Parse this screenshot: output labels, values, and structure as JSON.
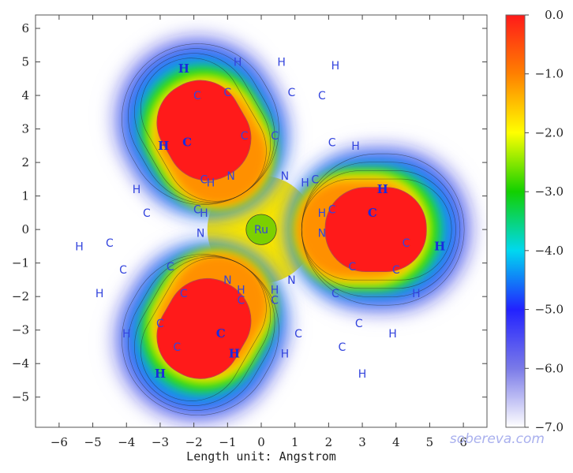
{
  "chart_data": {
    "type": "heatmap",
    "title": "",
    "xlabel": "Length unit: Angstrom",
    "ylabel": "",
    "xlim": [
      -6.7,
      6.7
    ],
    "ylim": [
      -5.9,
      6.4
    ],
    "x_ticks": [
      -6,
      -5,
      -4,
      -3,
      -2,
      -1,
      0,
      1,
      2,
      3,
      4,
      5,
      6
    ],
    "y_ticks": [
      -5,
      -4,
      -3,
      -2,
      -1,
      0,
      1,
      2,
      3,
      4,
      5,
      6
    ],
    "x_tick_labels": [
      "−6",
      "−5",
      "−4",
      "−3",
      "−2",
      "−1",
      "0",
      "1",
      "2",
      "3",
      "4",
      "5",
      "6"
    ],
    "y_tick_labels": [
      "−5",
      "−4",
      "−3",
      "−2",
      "−1",
      "0",
      "1",
      "2",
      "3",
      "4",
      "5",
      "6"
    ],
    "colorbar": {
      "range": [
        -7.0,
        0.0
      ],
      "ticks": [
        0.0,
        -1.0,
        -2.0,
        -3.0,
        -4.0,
        -5.0,
        -6.0,
        -7.0
      ],
      "tick_labels": [
        "0.0",
        "−1.0",
        "−2.0",
        "−3.0",
        "−4.0",
        "−5.0",
        "−6.0",
        "−7.0"
      ],
      "colors": [
        "#ffffff",
        "#7a7ae8",
        "#2222ff",
        "#00d8f0",
        "#12d000",
        "#ffff00",
        "#ff8000",
        "#ff1a1a"
      ]
    },
    "center_atom": {
      "label": "Ru",
      "x": 0.0,
      "y": 0.0
    },
    "ligand_axes_deg": [
      120,
      0,
      240
    ],
    "atoms": [
      {
        "label": "Ru",
        "x": 0.0,
        "y": 0.0,
        "bold": false
      },
      {
        "label": "H",
        "x": -2.3,
        "y": 4.8,
        "bold": true
      },
      {
        "label": "H",
        "x": -0.7,
        "y": 5.0,
        "bold": false
      },
      {
        "label": "H",
        "x": 0.6,
        "y": 5.0,
        "bold": false
      },
      {
        "label": "H",
        "x": 2.2,
        "y": 4.9,
        "bold": false
      },
      {
        "label": "C",
        "x": -1.9,
        "y": 4.0,
        "bold": false
      },
      {
        "label": "C",
        "x": -1.0,
        "y": 4.1,
        "bold": false
      },
      {
        "label": "C",
        "x": 0.9,
        "y": 4.1,
        "bold": false
      },
      {
        "label": "C",
        "x": 1.8,
        "y": 4.0,
        "bold": false
      },
      {
        "label": "H",
        "x": -2.9,
        "y": 2.5,
        "bold": true
      },
      {
        "label": "C",
        "x": -2.2,
        "y": 2.6,
        "bold": true
      },
      {
        "label": "C",
        "x": -0.5,
        "y": 2.8,
        "bold": false
      },
      {
        "label": "C",
        "x": 0.4,
        "y": 2.8,
        "bold": false
      },
      {
        "label": "C",
        "x": 2.1,
        "y": 2.6,
        "bold": false
      },
      {
        "label": "H",
        "x": 2.8,
        "y": 2.5,
        "bold": false
      },
      {
        "label": "C",
        "x": -1.7,
        "y": 1.5,
        "bold": false
      },
      {
        "label": "H",
        "x": -1.5,
        "y": 1.4,
        "bold": false
      },
      {
        "label": "N",
        "x": -0.9,
        "y": 1.6,
        "bold": false
      },
      {
        "label": "N",
        "x": 0.7,
        "y": 1.6,
        "bold": false
      },
      {
        "label": "H",
        "x": 1.3,
        "y": 1.4,
        "bold": false
      },
      {
        "label": "C",
        "x": 1.6,
        "y": 1.5,
        "bold": false
      },
      {
        "label": "H",
        "x": -3.7,
        "y": 1.2,
        "bold": false
      },
      {
        "label": "H",
        "x": 3.6,
        "y": 1.2,
        "bold": true
      },
      {
        "label": "C",
        "x": -1.9,
        "y": 0.6,
        "bold": false
      },
      {
        "label": "H",
        "x": -1.7,
        "y": 0.5,
        "bold": false
      },
      {
        "label": "H",
        "x": 1.8,
        "y": 0.5,
        "bold": false
      },
      {
        "label": "C",
        "x": 2.1,
        "y": 0.6,
        "bold": false
      },
      {
        "label": "C",
        "x": 3.3,
        "y": 0.5,
        "bold": true
      },
      {
        "label": "C",
        "x": -3.4,
        "y": 0.5,
        "bold": false
      },
      {
        "label": "N",
        "x": -1.8,
        "y": -0.1,
        "bold": false
      },
      {
        "label": "N",
        "x": 1.8,
        "y": -0.1,
        "bold": false
      },
      {
        "label": "C",
        "x": -4.5,
        "y": -0.4,
        "bold": false
      },
      {
        "label": "C",
        "x": 4.3,
        "y": -0.4,
        "bold": false
      },
      {
        "label": "H",
        "x": -5.4,
        "y": -0.5,
        "bold": false
      },
      {
        "label": "H",
        "x": 5.3,
        "y": -0.5,
        "bold": true
      },
      {
        "label": "C",
        "x": -4.1,
        "y": -1.2,
        "bold": false
      },
      {
        "label": "C",
        "x": -2.7,
        "y": -1.1,
        "bold": false
      },
      {
        "label": "C",
        "x": 2.7,
        "y": -1.1,
        "bold": false
      },
      {
        "label": "C",
        "x": 4.0,
        "y": -1.2,
        "bold": false
      },
      {
        "label": "N",
        "x": -1.0,
        "y": -1.5,
        "bold": false
      },
      {
        "label": "N",
        "x": 0.9,
        "y": -1.5,
        "bold": false
      },
      {
        "label": "H",
        "x": -0.6,
        "y": -1.8,
        "bold": false
      },
      {
        "label": "C",
        "x": -0.6,
        "y": -2.1,
        "bold": false
      },
      {
        "label": "H",
        "x": 0.4,
        "y": -1.8,
        "bold": false
      },
      {
        "label": "C",
        "x": 0.4,
        "y": -2.1,
        "bold": false
      },
      {
        "label": "C",
        "x": -2.3,
        "y": -1.9,
        "bold": false
      },
      {
        "label": "C",
        "x": 2.2,
        "y": -1.9,
        "bold": false
      },
      {
        "label": "H",
        "x": -4.8,
        "y": -1.9,
        "bold": false
      },
      {
        "label": "H",
        "x": 4.6,
        "y": -1.9,
        "bold": false
      },
      {
        "label": "C",
        "x": -3.0,
        "y": -2.8,
        "bold": false
      },
      {
        "label": "C",
        "x": 2.9,
        "y": -2.8,
        "bold": false
      },
      {
        "label": "H",
        "x": -4.0,
        "y": -3.1,
        "bold": false
      },
      {
        "label": "C",
        "x": -1.2,
        "y": -3.1,
        "bold": true
      },
      {
        "label": "C",
        "x": 1.1,
        "y": -3.1,
        "bold": false
      },
      {
        "label": "H",
        "x": 3.9,
        "y": -3.1,
        "bold": false
      },
      {
        "label": "C",
        "x": -2.5,
        "y": -3.5,
        "bold": false
      },
      {
        "label": "C",
        "x": 2.4,
        "y": -3.5,
        "bold": false
      },
      {
        "label": "H",
        "x": -0.8,
        "y": -3.7,
        "bold": true
      },
      {
        "label": "H",
        "x": 0.7,
        "y": -3.7,
        "bold": false
      },
      {
        "label": "H",
        "x": -3.0,
        "y": -4.3,
        "bold": true
      },
      {
        "label": "H",
        "x": 3.0,
        "y": -4.3,
        "bold": false
      }
    ]
  },
  "watermark": "sobereva.com"
}
